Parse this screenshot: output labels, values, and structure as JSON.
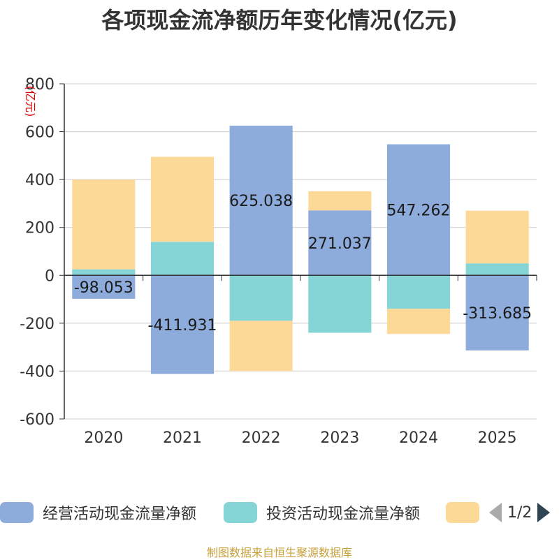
{
  "chart_data": {
    "type": "bar",
    "stacked": true,
    "title": "各项现金流净额历年变化情况(亿元)",
    "ylabel": "(亿元)",
    "xlabel": "",
    "ylim": [
      -600,
      800
    ],
    "yticks": [
      "800",
      "600",
      "400",
      "200",
      "0",
      "-200",
      "-400",
      "-600"
    ],
    "ytick_values": [
      800,
      600,
      400,
      200,
      0,
      -200,
      -400,
      -600
    ],
    "categories": [
      "2020",
      "2021",
      "2022",
      "2023",
      "2024",
      "2025"
    ],
    "grid": true,
    "series": [
      {
        "name": "经营活动现金流量净额",
        "color": "#8eacdb",
        "values": [
          -98.053,
          -411.931,
          625.038,
          271.037,
          547.262,
          -313.685
        ],
        "labels": [
          "-98.053",
          "-411.931",
          "625.038",
          "271.037",
          "547.262",
          "-313.685"
        ]
      },
      {
        "name": "投资活动现金流量净额",
        "color": "#86d5d6",
        "values": [
          25,
          140,
          -190,
          -240,
          -140,
          50
        ]
      },
      {
        "name": "",
        "color": "#fdd998",
        "values": [
          375,
          355,
          -210,
          80,
          -105,
          220
        ]
      }
    ]
  },
  "legend": {
    "item1": "经营活动现金流量净额",
    "item2": "投资活动现金流量净额",
    "page": "1/2"
  },
  "source": "制图数据来自恒生聚源数据库"
}
